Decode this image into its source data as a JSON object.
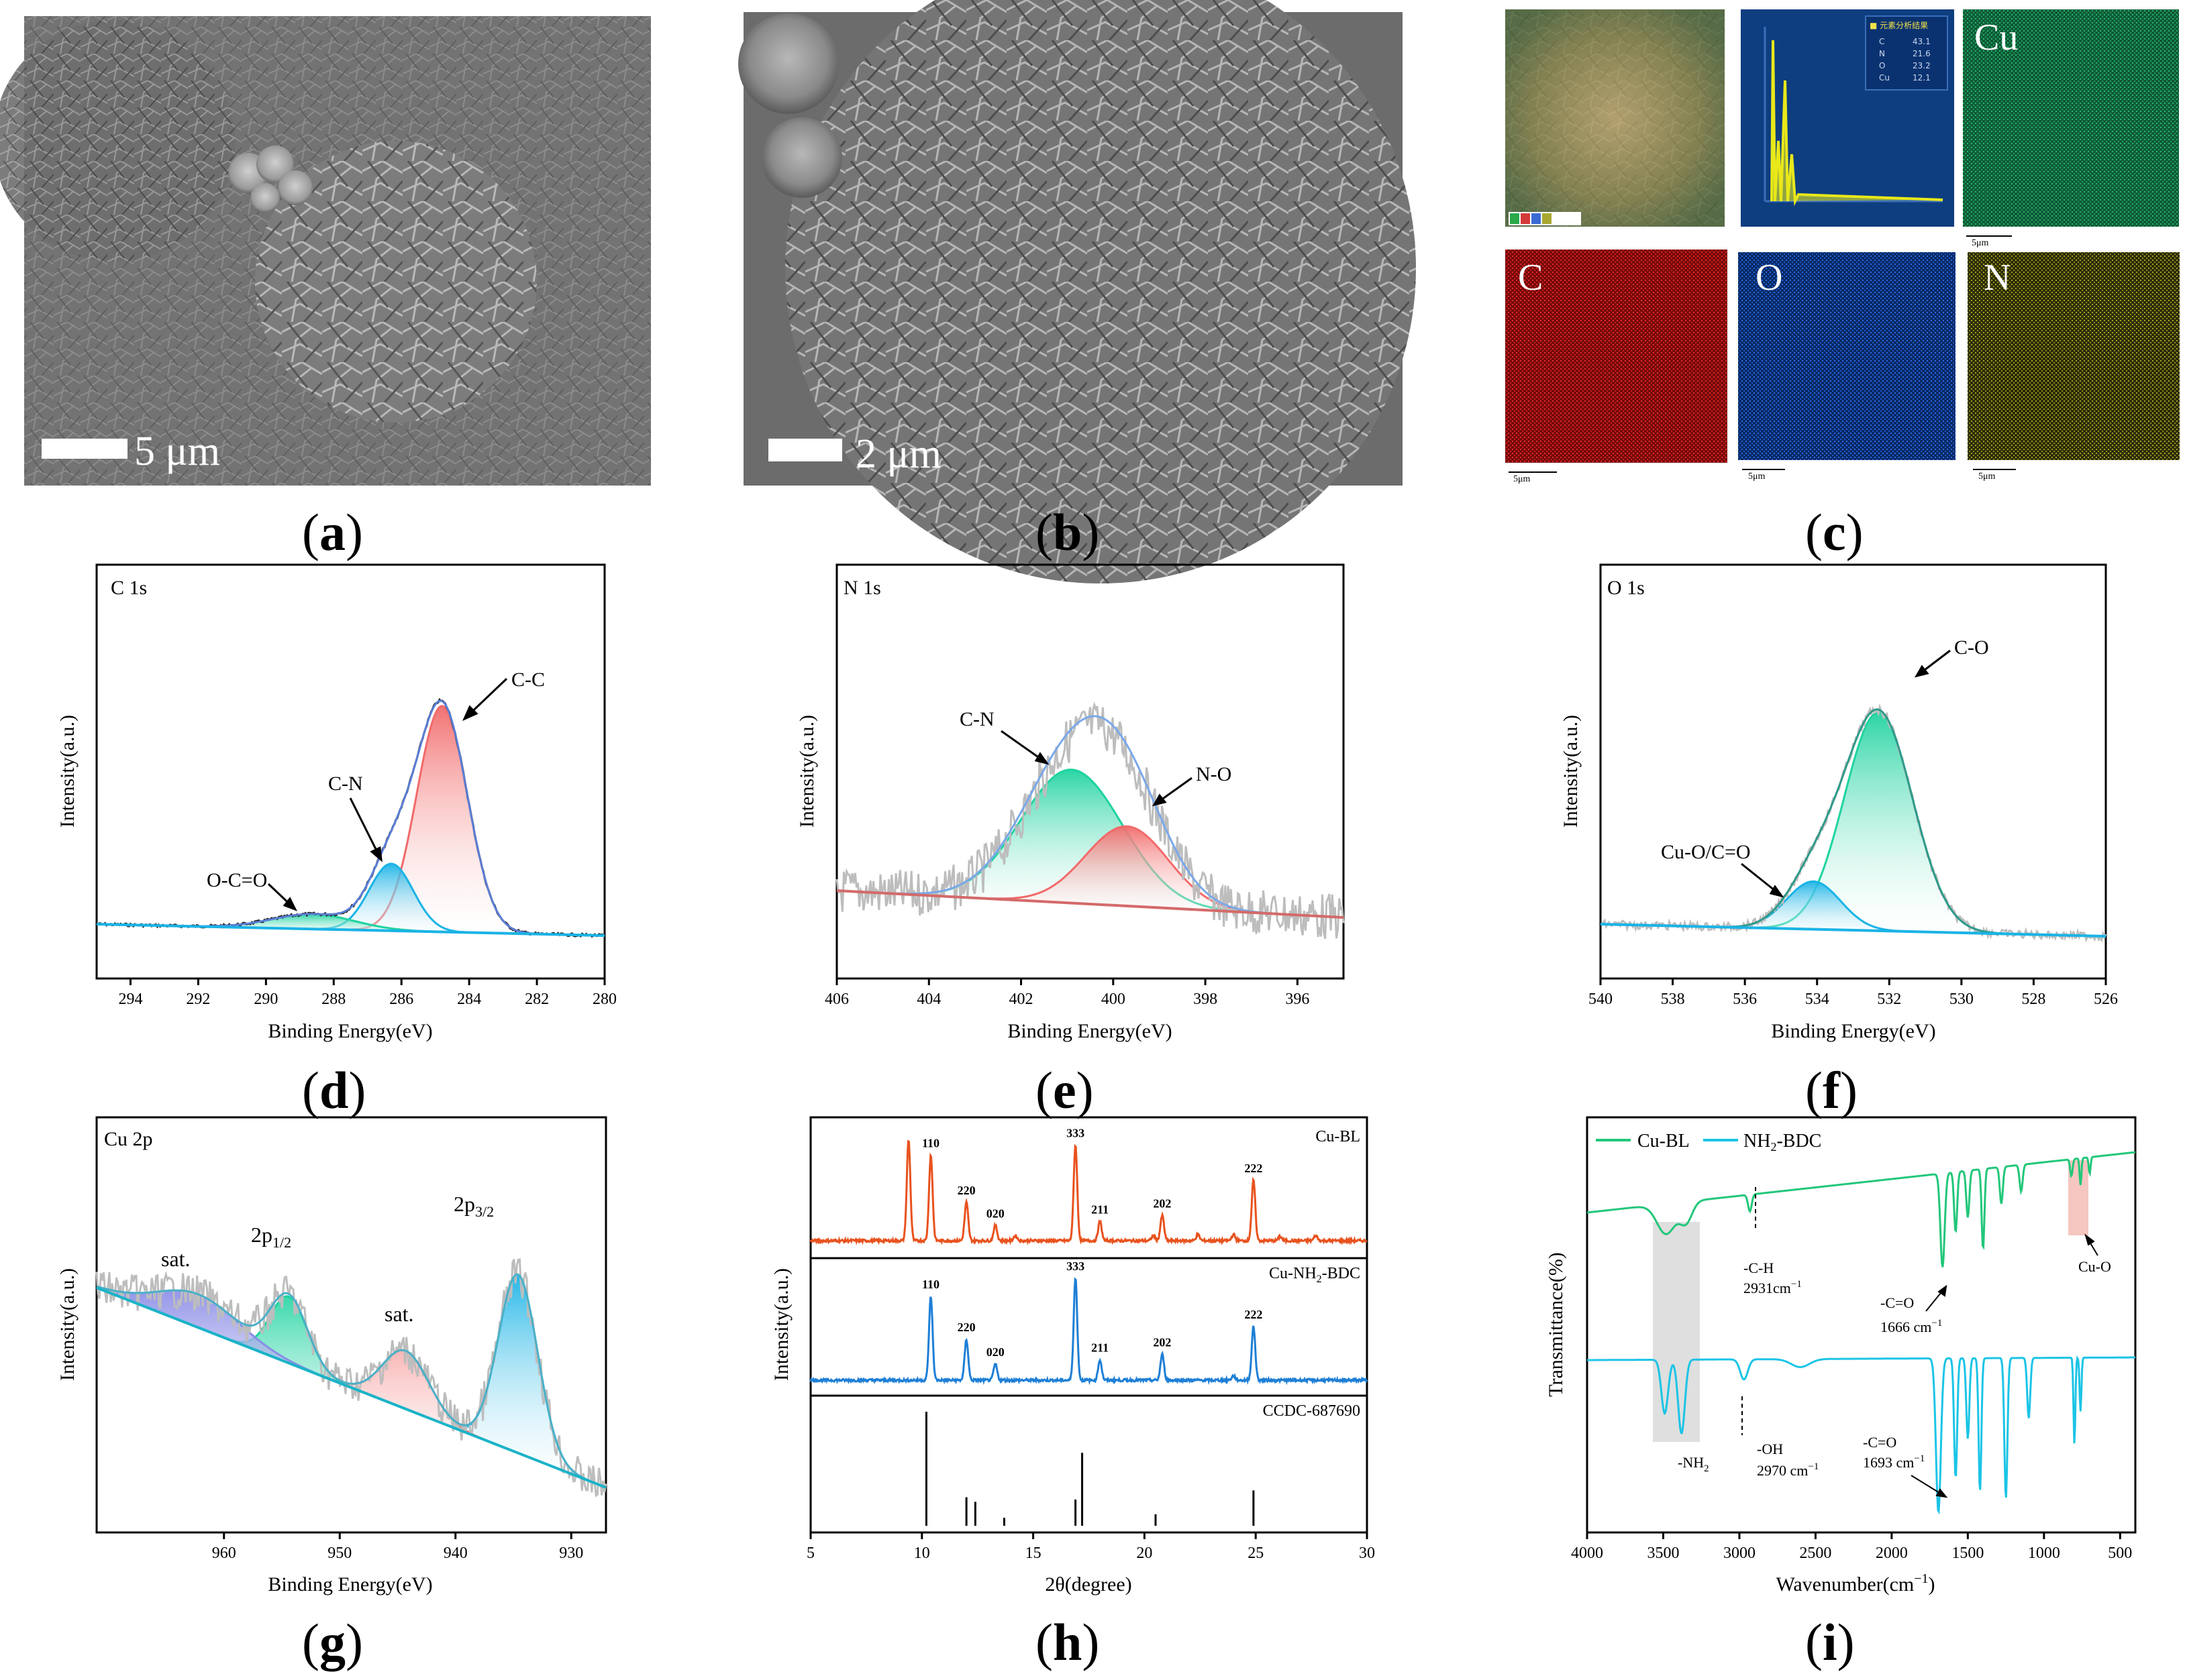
{
  "panels": {
    "a": {
      "label": "(a)",
      "letter": "a",
      "scale_text": "5 μm"
    },
    "b": {
      "label": "(b)",
      "letter": "b",
      "scale_text": "2 μm"
    },
    "c": {
      "label": "(c)",
      "letter": "c",
      "maps": [
        "Cu",
        "C",
        "O",
        "N"
      ],
      "scale_text": "5μm"
    },
    "d": {
      "label": "(d)",
      "letter": "d"
    },
    "e": {
      "label": "(e)",
      "letter": "e"
    },
    "f": {
      "label": "(f)",
      "letter": "f"
    },
    "g": {
      "label": "(g)",
      "letter": "g"
    },
    "h": {
      "label": "(h)",
      "letter": "h"
    },
    "i": {
      "label": "(i)",
      "letter": "i"
    }
  },
  "colors": {
    "green": "#1fd3a0",
    "red": "#f26a6a",
    "blue": "#1ab3e6",
    "envelope": "#5b7fd6",
    "raw": "#bdbdbd",
    "xrd_orange": "#e8521e",
    "xrd_blue": "#1e7fd6",
    "ftir_green": "#22c77a",
    "ftir_cyan": "#1bc4e6",
    "purple": "#8a8ce6"
  },
  "chart_data": [
    {
      "id": "d",
      "type": "line",
      "title": "C 1s",
      "xlabel": "Binding Energy(eV)",
      "ylabel": "Intensity(a.u.)",
      "xlim": [
        295,
        280
      ],
      "x_ticks": [
        294,
        292,
        290,
        288,
        286,
        284,
        282,
        280
      ],
      "peaks": [
        {
          "name": "C-C",
          "center": 284.8,
          "height": 0.91,
          "width": 0.75
        },
        {
          "name": "C-N",
          "center": 286.3,
          "height": 0.27,
          "width": 0.65
        },
        {
          "name": "O-C=O",
          "center": 288.6,
          "height": 0.06,
          "width": 1.2
        }
      ],
      "annotations": [
        "C-C",
        "C-N",
        "O-C=O"
      ]
    },
    {
      "id": "e",
      "type": "line",
      "title": "N 1s",
      "xlabel": "Binding Energy(eV)",
      "ylabel": "Intensity(a.u.)",
      "xlim": [
        406,
        395
      ],
      "x_ticks": [
        406,
        404,
        402,
        400,
        398,
        396
      ],
      "peaks": [
        {
          "name": "C-N",
          "center": 400.9,
          "height": 0.62,
          "width": 1.1
        },
        {
          "name": "N-O",
          "center": 399.7,
          "height": 0.37,
          "width": 0.9
        }
      ],
      "annotations": [
        "C-N",
        "N-O"
      ]
    },
    {
      "id": "f",
      "type": "line",
      "title": "O 1s",
      "xlabel": "Binding Energy(eV)",
      "ylabel": "Intensity(a.u.)",
      "xlim": [
        540,
        526
      ],
      "x_ticks": [
        540,
        538,
        536,
        534,
        532,
        530,
        528,
        526
      ],
      "peaks": [
        {
          "name": "C-O",
          "center": 532.3,
          "height": 0.96,
          "width": 0.95
        },
        {
          "name": "Cu-O/C=O",
          "center": 534.1,
          "height": 0.21,
          "width": 0.75
        }
      ],
      "annotations": [
        "C-O",
        "Cu-O/C=O"
      ]
    },
    {
      "id": "g",
      "type": "line",
      "title": "Cu 2p",
      "xlabel": "Binding Energy(eV)",
      "ylabel": "Intensity(a.u.)",
      "xlim": [
        971,
        927
      ],
      "x_ticks": [
        960,
        950,
        940,
        930
      ],
      "peaks": [
        {
          "name": "2p3/2",
          "center": 934.6,
          "height": 0.86,
          "width": 1.7
        },
        {
          "name": "sat.",
          "center": 944.3,
          "height": 0.28,
          "width": 2.0
        },
        {
          "name": "2p1/2",
          "center": 954.4,
          "height": 0.32,
          "width": 1.6
        },
        {
          "name": "sat.",
          "center": 962.2,
          "height": 0.16,
          "width": 3.5
        }
      ],
      "annotations": [
        "sat.",
        "2p1/2",
        "sat.",
        "2p3/2"
      ]
    },
    {
      "id": "h",
      "type": "line",
      "xlabel": "2θ(degree)",
      "ylabel": "Intensity(a.u.)",
      "xlim": [
        5,
        30
      ],
      "x_ticks": [
        5,
        10,
        15,
        20,
        25,
        30
      ],
      "series": [
        {
          "name": "Cu-BL",
          "peaks": [
            [
              9.4,
              1.0
            ],
            [
              10.4,
              0.85
            ],
            [
              12.0,
              0.38
            ],
            [
              13.3,
              0.15
            ],
            [
              14.2,
              0.05
            ],
            [
              16.9,
              0.95
            ],
            [
              18.0,
              0.19
            ],
            [
              20.4,
              0.05
            ],
            [
              20.8,
              0.25
            ],
            [
              22.4,
              0.06
            ],
            [
              24.0,
              0.06
            ],
            [
              24.9,
              0.6
            ],
            [
              26.1,
              0.04
            ],
            [
              27.7,
              0.05
            ]
          ],
          "hkl": [
            [
              10.4,
              "110"
            ],
            [
              12.0,
              "220"
            ],
            [
              13.3,
              "020"
            ],
            [
              16.9,
              "333"
            ],
            [
              18.0,
              "211"
            ],
            [
              20.8,
              "202"
            ],
            [
              24.9,
              "222"
            ]
          ]
        },
        {
          "name": "Cu-NH2-BDC",
          "peaks": [
            [
              10.4,
              0.78
            ],
            [
              12.0,
              0.38
            ],
            [
              13.3,
              0.15
            ],
            [
              16.9,
              0.95
            ],
            [
              18.0,
              0.19
            ],
            [
              20.8,
              0.24
            ],
            [
              24.9,
              0.5
            ],
            [
              24.0,
              0.04
            ]
          ],
          "hkl": [
            [
              10.4,
              "110"
            ],
            [
              12.0,
              "220"
            ],
            [
              13.3,
              "020"
            ],
            [
              16.9,
              "333"
            ],
            [
              18.0,
              "211"
            ],
            [
              20.8,
              "202"
            ],
            [
              24.9,
              "222"
            ]
          ]
        },
        {
          "name": "CCDC-687690",
          "sticks": [
            [
              10.2,
              1.0
            ],
            [
              12.0,
              0.25
            ],
            [
              12.4,
              0.21
            ],
            [
              13.7,
              0.07
            ],
            [
              16.9,
              0.23
            ],
            [
              17.2,
              0.64
            ],
            [
              20.5,
              0.1
            ],
            [
              24.9,
              0.31
            ]
          ]
        }
      ],
      "labels": {
        "s1": "Cu-BL",
        "s2_main": "Cu-NH",
        "s2_sub": "2",
        "s2_tail": "-BDC",
        "s3": "CCDC-687690"
      }
    },
    {
      "id": "i",
      "type": "line",
      "xlabel": "Wavenumber(cm⁻¹)",
      "ylabel": "Transmittance(%)",
      "xlim": [
        4000,
        400
      ],
      "x_ticks": [
        4000,
        3500,
        3000,
        2500,
        2000,
        1500,
        1000,
        500
      ],
      "series": [
        {
          "name": "Cu-BL",
          "color_key": "ftir_green"
        },
        {
          "name": "NH2-BDC",
          "color_key": "ftir_cyan"
        }
      ],
      "legend": {
        "s1": "Cu-BL",
        "s2_main": "NH",
        "s2_sub": "2",
        "s2_tail": "-BDC"
      },
      "annotations": {
        "ch": "-C-H",
        "ch_val": "2931cm⁻¹",
        "co1": "-C=O",
        "co1_val": "1666 cm⁻¹",
        "cuo": "Cu-O",
        "nh2_main": "-NH",
        "nh2_sub": "2",
        "oh": "-OH",
        "oh_val": "2970 cm⁻¹",
        "co2": "-C=O",
        "co2_val": "1693 cm⁻¹"
      }
    }
  ],
  "sub": {
    "p12": "1/2",
    "p32": "3/2",
    "main2p": "2p"
  },
  "ticks_d": [
    "294",
    "292",
    "290",
    "288",
    "286",
    "284",
    "282",
    "280"
  ],
  "ticks_e": [
    "406",
    "404",
    "402",
    "400",
    "398",
    "396"
  ],
  "ticks_f": [
    "540",
    "538",
    "536",
    "534",
    "532",
    "530",
    "528",
    "526"
  ],
  "ticks_g": [
    "960",
    "950",
    "940",
    "930"
  ],
  "ticks_h": [
    "5",
    "10",
    "15",
    "20",
    "25",
    "30"
  ],
  "ticks_i": [
    "4000",
    "3500",
    "3000",
    "2500",
    "2000",
    "1500",
    "1000",
    "500"
  ],
  "eds_table": {
    "title": "■ 元素分析结果",
    "rows": [
      [
        "C",
        "43.1"
      ],
      [
        "N",
        "21.6"
      ],
      [
        "O",
        "23.2"
      ],
      [
        "Cu",
        "12.1"
      ]
    ]
  }
}
